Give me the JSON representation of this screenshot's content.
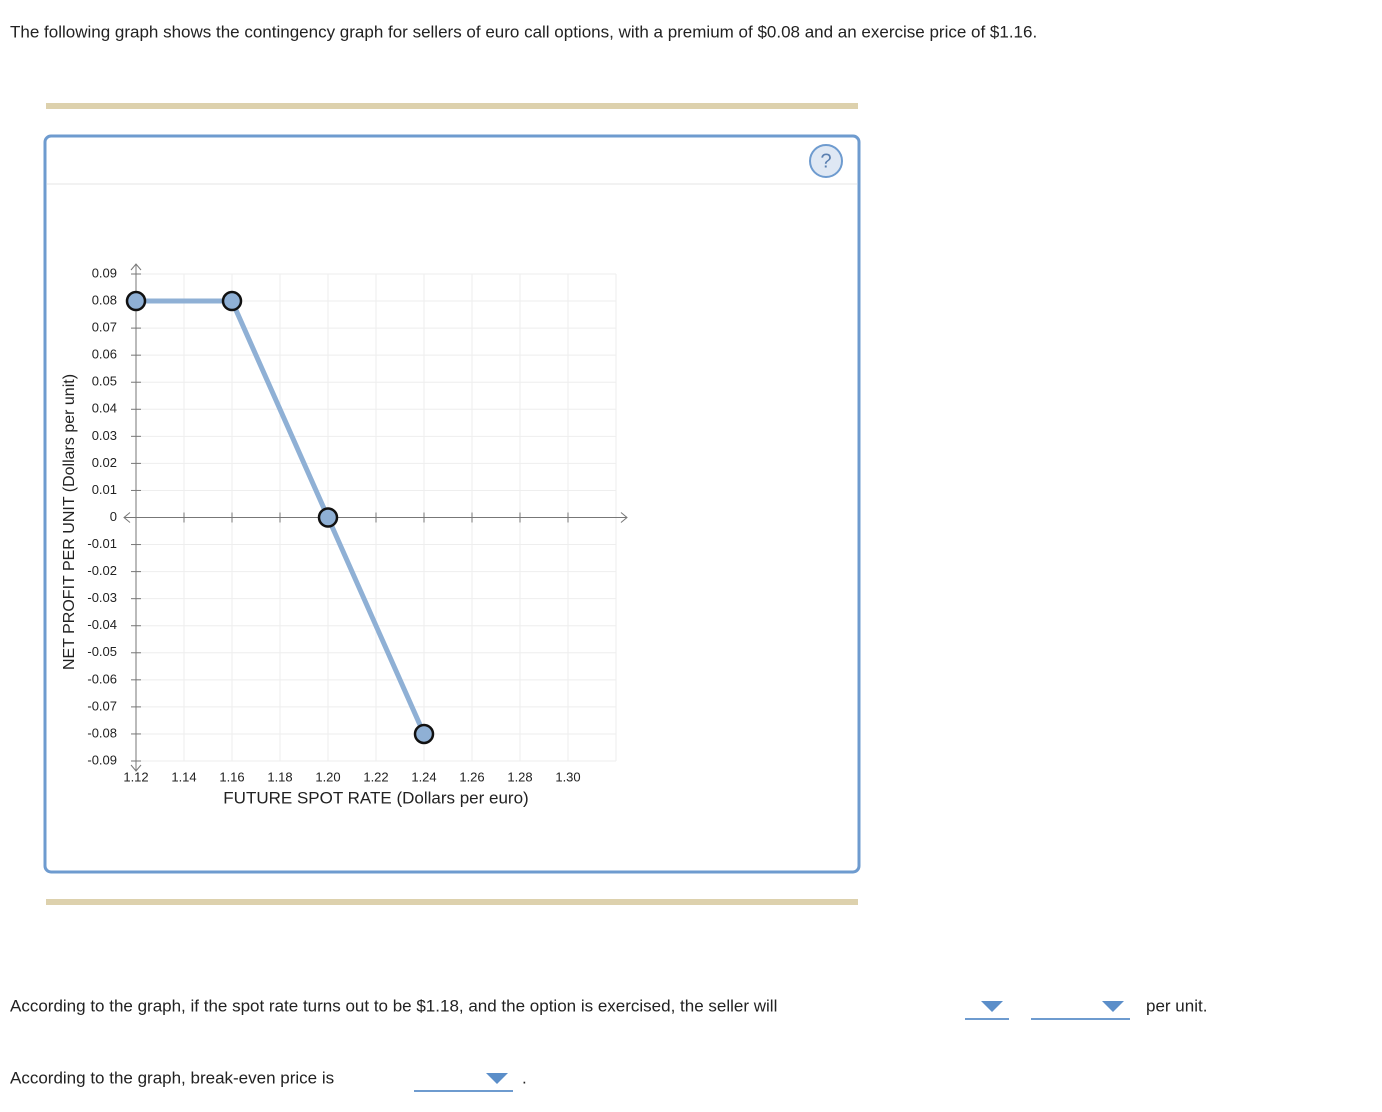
{
  "intro": "The following graph shows the contingency graph for sellers of euro call options, with a premium of $0.08 and an exercise price of $1.16.",
  "help": "?",
  "chart_data": {
    "type": "line",
    "xlabel": "FUTURE SPOT RATE (Dollars per euro)",
    "ylabel": "NET PROFIT PER UNIT (Dollars per unit)",
    "x": [
      1.12,
      1.16,
      1.2,
      1.24
    ],
    "series": [
      {
        "color": "#8fb0d5",
        "values": [
          0.08,
          0.08,
          0,
          -0.08
        ]
      }
    ],
    "xlim": [
      1.12,
      1.32
    ],
    "xticks": [
      1.12,
      1.14,
      1.16,
      1.18,
      {
        "value": 1.2,
        "label": "1.20"
      },
      1.22,
      1.24,
      1.26,
      1.28,
      {
        "value": 1.3,
        "label": "1.30"
      }
    ],
    "ylim": [
      -0.09,
      0.09
    ],
    "yticks": [
      -0.09,
      -0.08,
      -0.07,
      -0.06,
      -0.05,
      -0.04,
      -0.03,
      -0.02,
      -0.01,
      0,
      0.01,
      0.02,
      0.03,
      0.04,
      0.05,
      0.06,
      0.07,
      0.08,
      0.09
    ],
    "grid": true
  },
  "question1": "According to the graph, if the spot rate turns out to be $1.18, and the option is exercised, the seller will",
  "question1_end": "per unit.",
  "question2": "According to the graph, break-even price is",
  "question2_end": "."
}
